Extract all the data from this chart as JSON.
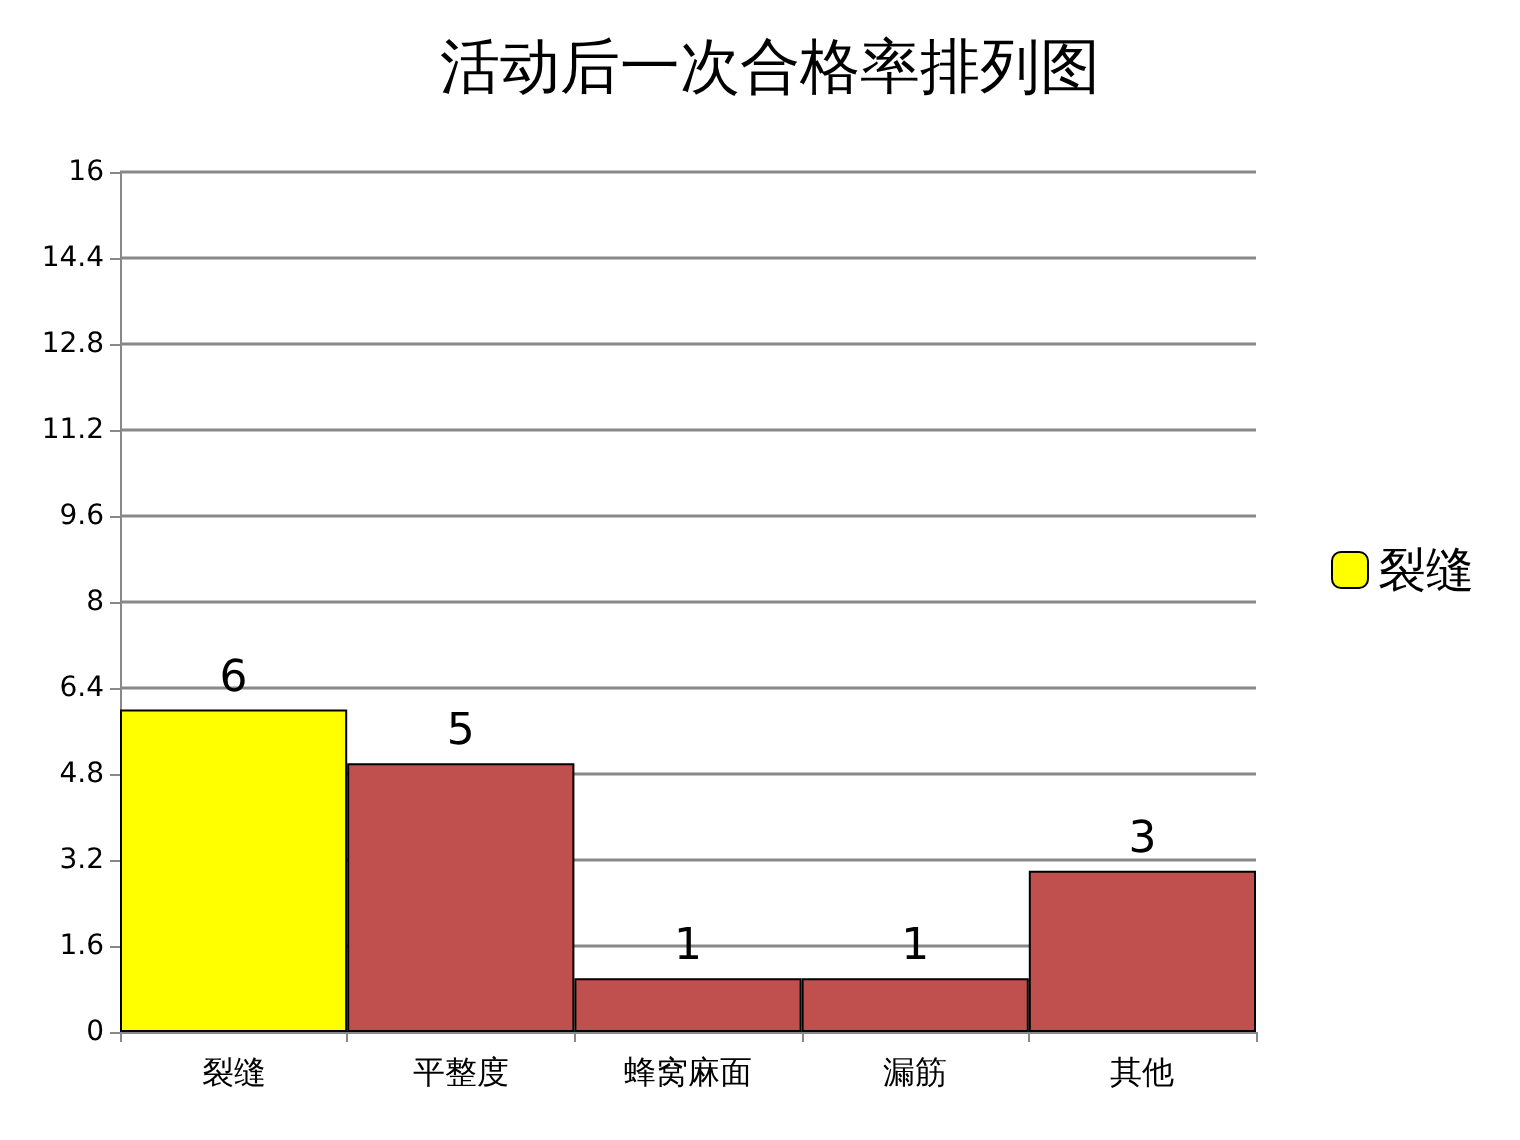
{
  "chart_data": {
    "type": "bar",
    "title": "活动后一次合格率排列图",
    "categories": [
      "裂缝",
      "平整度",
      "蜂窝麻面",
      "漏筋",
      "其他"
    ],
    "series": [
      {
        "name": "裂缝",
        "color": "#ffff00",
        "colors": [
          "#ffff00",
          "#c0504d",
          "#c0504d",
          "#c0504d",
          "#c0504d"
        ],
        "values": [
          6,
          5,
          1,
          1,
          3
        ]
      }
    ],
    "ylim": [
      0,
      16
    ],
    "yticks": [
      0,
      1.6,
      3.2,
      4.8,
      6.4,
      8,
      9.6,
      11.2,
      12.8,
      14.4,
      16
    ],
    "grid": "y",
    "legend": "right",
    "data_labels": true
  }
}
